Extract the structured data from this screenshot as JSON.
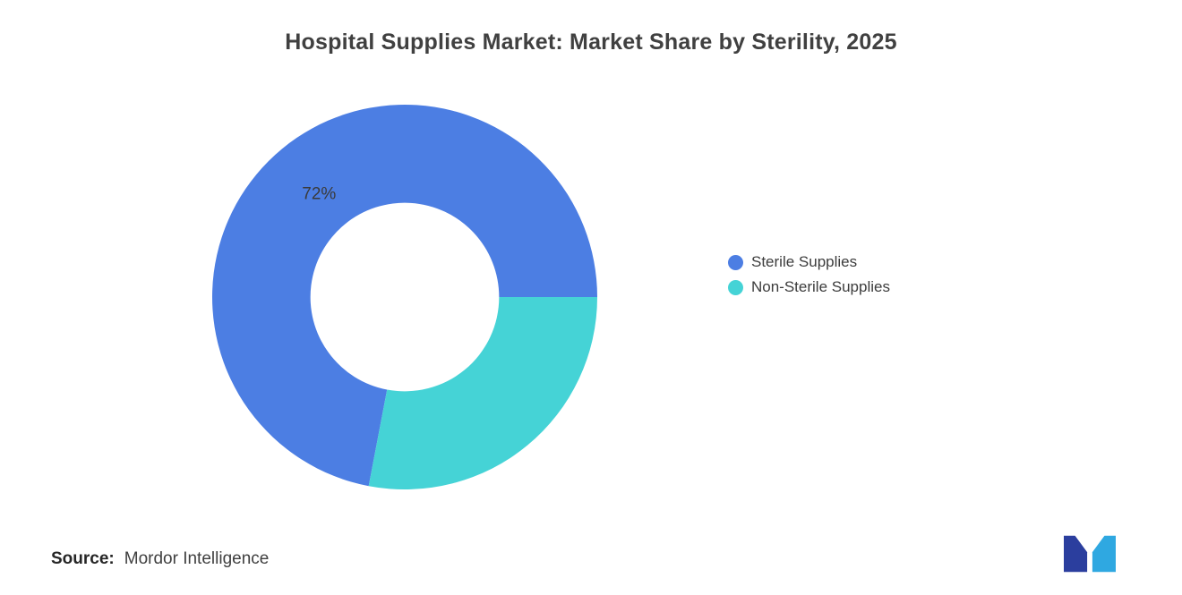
{
  "title": "Hospital Supplies Market: Market Share by Sterility, 2025",
  "chart_data": {
    "type": "pie",
    "subtype": "donut",
    "title": "Hospital Supplies Market: Market Share by Sterility, 2025",
    "unit": "%",
    "series": [
      {
        "name": "Sterile Supplies",
        "value": 72,
        "color": "#4c7ee3",
        "label": "72%"
      },
      {
        "name": "Non-Sterile Supplies",
        "value": 28,
        "color": "#45d3d6",
        "label": ""
      }
    ],
    "start_angle": -169.2,
    "inner_radius_ratio": 0.49,
    "legend_position": "right",
    "data_label_color": "#3a3a3a",
    "grid": false
  },
  "legend": {
    "items": [
      {
        "label": "Sterile Supplies"
      },
      {
        "label": "Non-Sterile Supplies"
      }
    ]
  },
  "source": {
    "label": "Source:",
    "text": "Mordor Intelligence"
  },
  "logo": {
    "name": "mordor-intelligence-logo",
    "primary": "#2b3e9e",
    "accent": "#2fa8e1"
  }
}
